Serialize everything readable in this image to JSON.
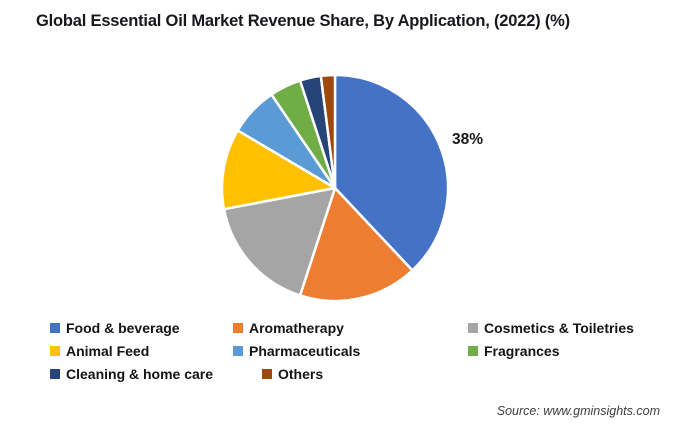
{
  "title": "Global Essential Oil Market Revenue Share, By Application, (2022) (%)",
  "source": "Source: www.gminsights.com",
  "chart_data": {
    "type": "pie",
    "title": "Global Essential Oil Market Revenue Share, By Application, (2022) (%)",
    "start_angle_deg": 0,
    "direction": "clockwise",
    "legend_position": "bottom",
    "values_estimated_from_angles": true,
    "callout": {
      "text": "38%",
      "slice": "Food & beverage"
    },
    "slices": [
      {
        "label": "Food & beverage",
        "value": 38,
        "color": "#4472C4"
      },
      {
        "label": "Aromatherapy",
        "value": 17,
        "color": "#ED7D31"
      },
      {
        "label": "Cosmetics & Toiletries",
        "value": 17,
        "color": "#A5A5A5"
      },
      {
        "label": "Animal Feed",
        "value": 11.5,
        "color": "#FFC000"
      },
      {
        "label": "Pharmaceuticals",
        "value": 7,
        "color": "#5B9BD5"
      },
      {
        "label": "Fragrances",
        "value": 4.5,
        "color": "#70AD47"
      },
      {
        "label": "Cleaning & home care",
        "value": 3,
        "color": "#264478"
      },
      {
        "label": "Others",
        "value": 2,
        "color": "#9E480E"
      }
    ]
  }
}
